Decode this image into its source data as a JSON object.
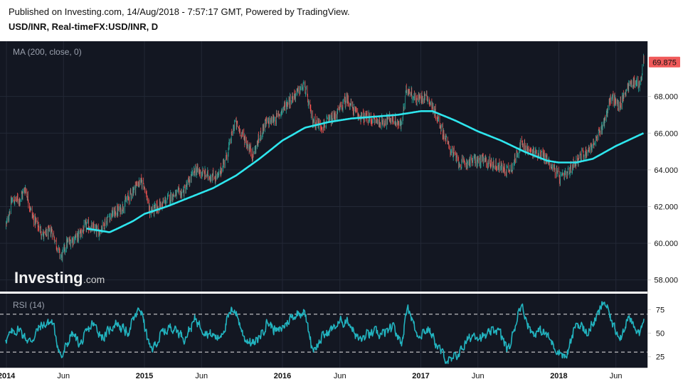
{
  "header": {
    "published": "Published on Investing.com, 14/Aug/2018 - 7:57:17 GMT, Powered by TradingView.",
    "symbol": "USD/INR, Real-timeFX:USD/INR, D"
  },
  "logo": {
    "main": "Investing",
    "suffix": ".com"
  },
  "colors": {
    "background": "#131722",
    "ma": "#2ee6ee",
    "rsi": "#22b3bf",
    "candle_up": "#26a69a",
    "candle_down": "#ef5350",
    "price_badge": "#f05a5a"
  },
  "chart_data": [
    {
      "type": "candlestick",
      "indicator_label": "MA (200, close, 0)",
      "last_price_label": "69.875",
      "y_ticks": [
        "58.000",
        "60.000",
        "62.000",
        "64.000",
        "66.000",
        "68.000"
      ],
      "ylim": [
        57.6,
        70.7
      ],
      "x_ticks": [
        "2014",
        "Jun",
        "2015",
        "Jun",
        "2016",
        "Jun",
        "2017",
        "Jun",
        "2018",
        "Jun"
      ],
      "price_keypoints": [
        [
          "2014-01-01",
          61.0
        ],
        [
          "2014-01-15",
          62.3
        ],
        [
          "2014-02-05",
          62.4
        ],
        [
          "2014-02-20",
          63.0
        ],
        [
          "2014-03-10",
          61.5
        ],
        [
          "2014-04-10",
          60.4
        ],
        [
          "2014-05-01",
          60.7
        ],
        [
          "2014-05-25",
          59.2
        ],
        [
          "2014-06-10",
          60.0
        ],
        [
          "2014-07-10",
          60.4
        ],
        [
          "2014-08-01",
          61.0
        ],
        [
          "2014-09-01",
          60.6
        ],
        [
          "2014-10-01",
          61.5
        ],
        [
          "2014-11-01",
          61.9
        ],
        [
          "2014-12-15",
          63.3
        ],
        [
          "2014-12-30",
          63.3
        ],
        [
          "2015-01-15",
          61.7
        ],
        [
          "2015-02-15",
          62.1
        ],
        [
          "2015-03-15",
          62.6
        ],
        [
          "2015-04-15",
          62.8
        ],
        [
          "2015-05-15",
          64.0
        ],
        [
          "2015-06-15",
          63.7
        ],
        [
          "2015-07-15",
          63.6
        ],
        [
          "2015-08-10",
          65.0
        ],
        [
          "2015-08-28",
          66.6
        ],
        [
          "2015-09-15",
          66.0
        ],
        [
          "2015-10-15",
          64.8
        ],
        [
          "2015-11-15",
          66.5
        ],
        [
          "2015-12-15",
          66.8
        ],
        [
          "2016-01-15",
          67.7
        ],
        [
          "2016-02-28",
          68.6
        ],
        [
          "2016-03-20",
          66.7
        ],
        [
          "2016-04-15",
          66.4
        ],
        [
          "2016-05-15",
          66.8
        ],
        [
          "2016-06-20",
          67.9
        ],
        [
          "2016-07-15",
          67.0
        ],
        [
          "2016-08-15",
          66.8
        ],
        [
          "2016-09-15",
          66.6
        ],
        [
          "2016-10-15",
          66.8
        ],
        [
          "2016-11-10",
          66.4
        ],
        [
          "2016-11-25",
          68.5
        ],
        [
          "2016-12-20",
          67.8
        ],
        [
          "2017-01-15",
          68.1
        ],
        [
          "2017-02-15",
          66.8
        ],
        [
          "2017-03-15",
          65.3
        ],
        [
          "2017-04-15",
          64.3
        ],
        [
          "2017-05-15",
          64.5
        ],
        [
          "2017-06-15",
          64.5
        ],
        [
          "2017-07-15",
          64.3
        ],
        [
          "2017-08-15",
          64.0
        ],
        [
          "2017-09-01",
          64.2
        ],
        [
          "2017-09-20",
          65.4
        ],
        [
          "2017-10-15",
          65.0
        ],
        [
          "2017-11-15",
          64.9
        ],
        [
          "2017-12-15",
          64.2
        ],
        [
          "2018-01-05",
          63.5
        ],
        [
          "2018-01-25",
          63.8
        ],
        [
          "2018-02-15",
          64.5
        ],
        [
          "2018-03-15",
          65.0
        ],
        [
          "2018-04-10",
          65.6
        ],
        [
          "2018-04-30",
          66.6
        ],
        [
          "2018-05-20",
          68.0
        ],
        [
          "2018-06-10",
          67.4
        ],
        [
          "2018-06-30",
          68.5
        ],
        [
          "2018-07-15",
          68.8
        ],
        [
          "2018-08-05",
          68.7
        ],
        [
          "2018-08-13",
          69.9
        ]
      ],
      "ma_keypoints": [
        [
          "2014-08-01",
          60.8
        ],
        [
          "2014-09-01",
          60.7
        ],
        [
          "2014-10-01",
          60.6
        ],
        [
          "2014-11-01",
          60.9
        ],
        [
          "2014-12-01",
          61.2
        ],
        [
          "2015-01-01",
          61.6
        ],
        [
          "2015-03-01",
          62.0
        ],
        [
          "2015-05-01",
          62.5
        ],
        [
          "2015-07-01",
          63.0
        ],
        [
          "2015-09-01",
          63.7
        ],
        [
          "2015-11-01",
          64.6
        ],
        [
          "2016-01-01",
          65.6
        ],
        [
          "2016-03-01",
          66.3
        ],
        [
          "2016-05-01",
          66.6
        ],
        [
          "2016-07-01",
          66.8
        ],
        [
          "2016-09-01",
          66.9
        ],
        [
          "2016-11-01",
          67.0
        ],
        [
          "2017-01-01",
          67.2
        ],
        [
          "2017-02-01",
          67.2
        ],
        [
          "2017-04-01",
          66.7
        ],
        [
          "2017-06-01",
          66.1
        ],
        [
          "2017-08-01",
          65.6
        ],
        [
          "2017-10-01",
          65.0
        ],
        [
          "2017-12-01",
          64.5
        ],
        [
          "2018-01-01",
          64.4
        ],
        [
          "2018-02-15",
          64.4
        ],
        [
          "2018-04-01",
          64.6
        ],
        [
          "2018-06-01",
          65.3
        ],
        [
          "2018-08-13",
          66.0
        ]
      ]
    },
    {
      "type": "line",
      "indicator_label": "RSI (14)",
      "y_ticks": [
        "25",
        "50",
        "75"
      ],
      "ylim": [
        15,
        88
      ],
      "guide_levels": [
        70,
        30
      ],
      "rsi_keypoints": [
        [
          "2014-01-01",
          45
        ],
        [
          "2014-02-01",
          55
        ],
        [
          "2014-03-01",
          40
        ],
        [
          "2014-04-01",
          58
        ],
        [
          "2014-05-01",
          62
        ],
        [
          "2014-05-25",
          22
        ],
        [
          "2014-06-20",
          50
        ],
        [
          "2014-07-15",
          38
        ],
        [
          "2014-08-15",
          60
        ],
        [
          "2014-09-15",
          45
        ],
        [
          "2014-10-15",
          62
        ],
        [
          "2014-11-15",
          50
        ],
        [
          "2014-12-20",
          78
        ],
        [
          "2015-01-15",
          30
        ],
        [
          "2015-02-15",
          50
        ],
        [
          "2015-03-15",
          58
        ],
        [
          "2015-04-15",
          45
        ],
        [
          "2015-05-15",
          65
        ],
        [
          "2015-06-15",
          50
        ],
        [
          "2015-07-15",
          45
        ],
        [
          "2015-08-25",
          78
        ],
        [
          "2015-09-20",
          45
        ],
        [
          "2015-10-20",
          38
        ],
        [
          "2015-11-20",
          62
        ],
        [
          "2015-12-20",
          50
        ],
        [
          "2016-01-20",
          66
        ],
        [
          "2016-02-25",
          75
        ],
        [
          "2016-03-20",
          32
        ],
        [
          "2016-04-20",
          48
        ],
        [
          "2016-05-20",
          58
        ],
        [
          "2016-06-20",
          65
        ],
        [
          "2016-07-20",
          42
        ],
        [
          "2016-08-20",
          50
        ],
        [
          "2016-09-20",
          48
        ],
        [
          "2016-10-20",
          55
        ],
        [
          "2016-11-10",
          38
        ],
        [
          "2016-11-25",
          82
        ],
        [
          "2016-12-20",
          48
        ],
        [
          "2017-01-20",
          55
        ],
        [
          "2017-02-20",
          30
        ],
        [
          "2017-03-20",
          18
        ],
        [
          "2017-04-20",
          35
        ],
        [
          "2017-05-20",
          50
        ],
        [
          "2017-06-20",
          45
        ],
        [
          "2017-07-20",
          55
        ],
        [
          "2017-08-20",
          30
        ],
        [
          "2017-09-20",
          82
        ],
        [
          "2017-10-20",
          50
        ],
        [
          "2017-11-20",
          52
        ],
        [
          "2017-12-20",
          35
        ],
        [
          "2018-01-20",
          24
        ],
        [
          "2018-02-15",
          62
        ],
        [
          "2018-03-15",
          50
        ],
        [
          "2018-04-15",
          70
        ],
        [
          "2018-04-30",
          85
        ],
        [
          "2018-05-25",
          55
        ],
        [
          "2018-06-15",
          48
        ],
        [
          "2018-07-01",
          68
        ],
        [
          "2018-07-20",
          52
        ],
        [
          "2018-08-05",
          50
        ],
        [
          "2018-08-13",
          72
        ]
      ]
    }
  ]
}
